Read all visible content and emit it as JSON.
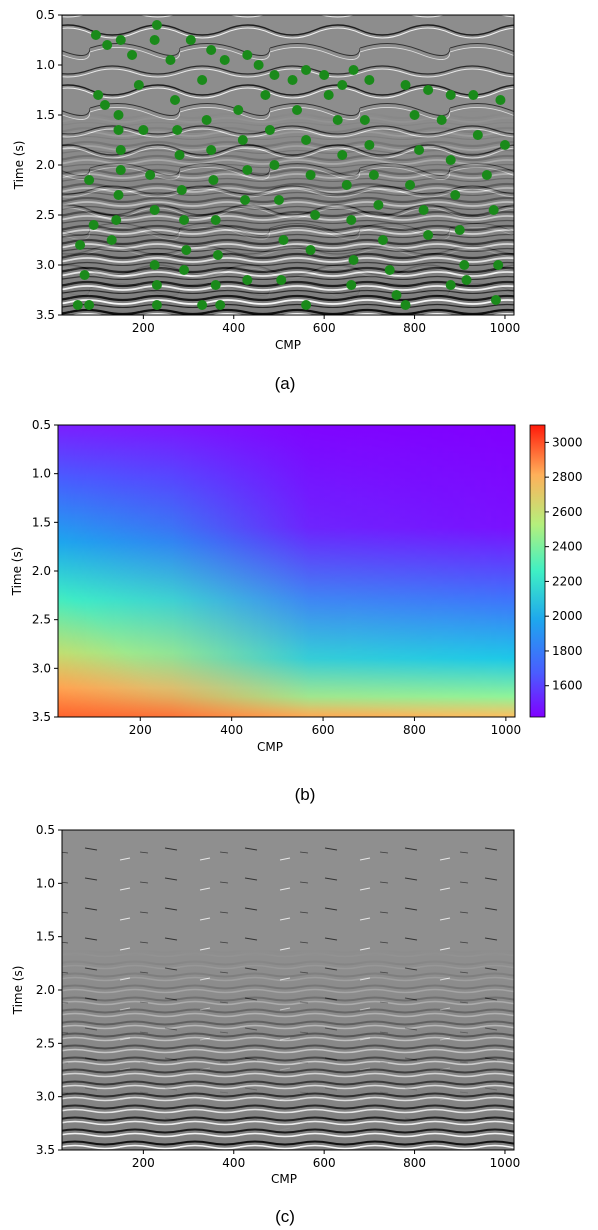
{
  "chart_data": [
    {
      "type": "heatmap",
      "panel": "a",
      "caption": "(a)",
      "xlabel": "CMP",
      "ylabel": "Time (s)",
      "xlim": [
        20,
        1020
      ],
      "ylim": [
        0.5,
        3.5
      ],
      "y_inverted": true,
      "xticks": [
        200,
        400,
        600,
        800,
        1000
      ],
      "yticks": [
        0.5,
        1.0,
        1.5,
        2.0,
        2.5,
        3.0,
        3.5
      ],
      "ytick_labels": [
        "0.5",
        "1.0",
        "1.5",
        "2.0",
        "2.5",
        "3.0",
        "3.5"
      ],
      "background": "grayscale seismic migration image",
      "marker_color": "#1a8a1a",
      "points": [
        [
          95,
          0.7
        ],
        [
          120,
          0.8
        ],
        [
          150,
          0.75
        ],
        [
          175,
          0.9
        ],
        [
          230,
          0.6
        ],
        [
          225,
          0.75
        ],
        [
          260,
          0.95
        ],
        [
          305,
          0.75
        ],
        [
          350,
          0.85
        ],
        [
          380,
          0.95
        ],
        [
          430,
          0.9
        ],
        [
          455,
          1.0
        ],
        [
          490,
          1.1
        ],
        [
          530,
          1.15
        ],
        [
          560,
          1.05
        ],
        [
          600,
          1.1
        ],
        [
          640,
          1.2
        ],
        [
          665,
          1.05
        ],
        [
          700,
          1.15
        ],
        [
          780,
          1.2
        ],
        [
          830,
          1.25
        ],
        [
          880,
          1.3
        ],
        [
          930,
          1.3
        ],
        [
          990,
          1.35
        ],
        [
          100,
          1.3
        ],
        [
          115,
          1.4
        ],
        [
          145,
          1.5
        ],
        [
          145,
          1.65
        ],
        [
          150,
          1.85
        ],
        [
          150,
          2.05
        ],
        [
          145,
          2.3
        ],
        [
          140,
          2.55
        ],
        [
          130,
          2.75
        ],
        [
          80,
          2.15
        ],
        [
          90,
          2.6
        ],
        [
          60,
          2.8
        ],
        [
          70,
          3.1
        ],
        [
          55,
          3.4
        ],
        [
          80,
          3.4
        ],
        [
          190,
          1.2
        ],
        [
          200,
          1.65
        ],
        [
          215,
          2.1
        ],
        [
          225,
          2.45
        ],
        [
          225,
          3.0
        ],
        [
          230,
          3.2
        ],
        [
          230,
          3.4
        ],
        [
          270,
          1.35
        ],
        [
          275,
          1.65
        ],
        [
          280,
          1.9
        ],
        [
          285,
          2.25
        ],
        [
          290,
          2.55
        ],
        [
          295,
          2.85
        ],
        [
          290,
          3.05
        ],
        [
          330,
          1.15
        ],
        [
          340,
          1.55
        ],
        [
          350,
          1.85
        ],
        [
          355,
          2.15
        ],
        [
          360,
          2.55
        ],
        [
          365,
          2.9
        ],
        [
          360,
          3.2
        ],
        [
          370,
          3.4
        ],
        [
          330,
          3.4
        ],
        [
          410,
          1.45
        ],
        [
          420,
          1.75
        ],
        [
          430,
          2.05
        ],
        [
          425,
          2.35
        ],
        [
          430,
          3.15
        ],
        [
          470,
          1.3
        ],
        [
          480,
          1.65
        ],
        [
          490,
          2.0
        ],
        [
          500,
          2.35
        ],
        [
          510,
          2.75
        ],
        [
          505,
          3.15
        ],
        [
          540,
          1.45
        ],
        [
          560,
          1.75
        ],
        [
          570,
          2.1
        ],
        [
          580,
          2.5
        ],
        [
          570,
          2.85
        ],
        [
          560,
          3.4
        ],
        [
          610,
          1.3
        ],
        [
          630,
          1.55
        ],
        [
          640,
          1.9
        ],
        [
          650,
          2.2
        ],
        [
          660,
          2.55
        ],
        [
          665,
          2.95
        ],
        [
          660,
          3.2
        ],
        [
          690,
          1.55
        ],
        [
          700,
          1.8
        ],
        [
          710,
          2.1
        ],
        [
          720,
          2.4
        ],
        [
          730,
          2.75
        ],
        [
          745,
          3.05
        ],
        [
          760,
          3.3
        ],
        [
          780,
          3.4
        ],
        [
          790,
          2.2
        ],
        [
          800,
          1.5
        ],
        [
          810,
          1.85
        ],
        [
          820,
          2.45
        ],
        [
          830,
          2.7
        ],
        [
          860,
          1.55
        ],
        [
          880,
          1.95
        ],
        [
          890,
          2.3
        ],
        [
          900,
          2.65
        ],
        [
          910,
          3.0
        ],
        [
          915,
          3.15
        ],
        [
          880,
          3.2
        ],
        [
          940,
          1.7
        ],
        [
          960,
          2.1
        ],
        [
          975,
          2.45
        ],
        [
          985,
          3.0
        ],
        [
          980,
          3.35
        ],
        [
          1000,
          1.8
        ]
      ]
    },
    {
      "type": "heatmap",
      "panel": "b",
      "caption": "(b)",
      "xlabel": "CMP",
      "ylabel": "Time (s)",
      "xlim": [
        20,
        1020
      ],
      "ylim": [
        0.5,
        3.5
      ],
      "y_inverted": true,
      "xticks": [
        200,
        400,
        600,
        800,
        1000
      ],
      "yticks": [
        0.5,
        1.0,
        1.5,
        2.0,
        2.5,
        3.0,
        3.5
      ],
      "ytick_labels": [
        "0.5",
        "1.0",
        "1.5",
        "2.0",
        "2.5",
        "3.0",
        "3.5"
      ],
      "colormap": "rainbow",
      "colorbar": {
        "vmin": 1420,
        "vmax": 3100,
        "ticks": [
          1600,
          1800,
          2000,
          2200,
          2400,
          2600,
          2800,
          3000
        ]
      }
    },
    {
      "type": "heatmap",
      "panel": "c",
      "caption": "(c)",
      "xlabel": "CMP",
      "ylabel": "Time (s)",
      "xlim": [
        20,
        1020
      ],
      "ylim": [
        0.5,
        3.5
      ],
      "y_inverted": true,
      "xticks": [
        200,
        400,
        600,
        800,
        1000
      ],
      "yticks": [
        0.5,
        1.0,
        1.5,
        2.0,
        2.5,
        3.0,
        3.5
      ],
      "ytick_labels": [
        "0.5",
        "1.0",
        "1.5",
        "2.0",
        "2.5",
        "3.0",
        "3.5"
      ],
      "background": "grayscale seismic migration image"
    }
  ]
}
